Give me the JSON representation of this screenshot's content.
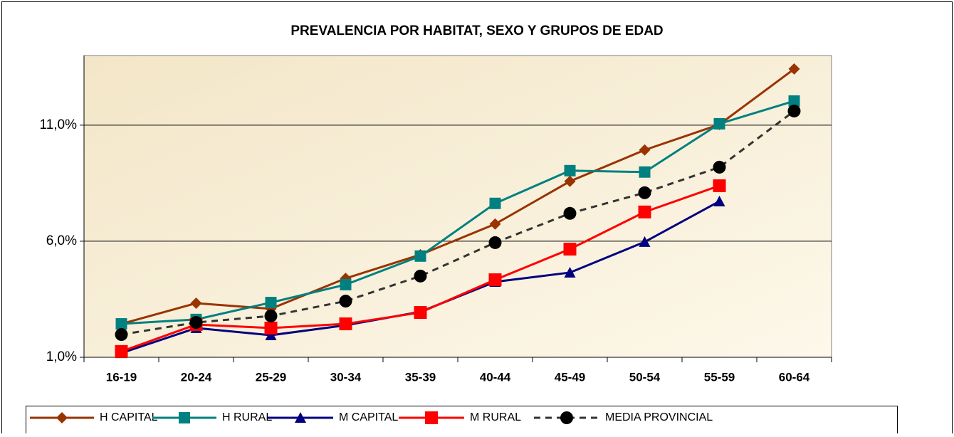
{
  "chart_data": {
    "type": "line",
    "title": "PREVALENCIA POR HABITAT, SEXO Y GRUPOS DE EDAD",
    "categories": [
      "16-19",
      "20-24",
      "25-29",
      "30-34",
      "35-39",
      "40-44",
      "45-49",
      "50-54",
      "55-59",
      "60-64"
    ],
    "ylim": [
      1,
      14
    ],
    "yticks": [
      {
        "value": 1,
        "label": "1,0%"
      },
      {
        "value": 6,
        "label": "6,0%"
      },
      {
        "value": 11,
        "label": "11,0%"
      }
    ],
    "grid": true,
    "legend": "bottom",
    "series": [
      {
        "name": "H CAPITAL",
        "color": "#993300",
        "marker": "diamond",
        "values": [
          2.44,
          3.33,
          3.09,
          4.4,
          5.42,
          6.74,
          8.58,
          9.93,
          11.03,
          13.42
        ]
      },
      {
        "name": "H RURAL",
        "color": "#008080",
        "marker": "square",
        "values": [
          2.44,
          2.63,
          3.36,
          4.13,
          5.36,
          7.63,
          9.04,
          8.98,
          11.06,
          12.04
        ]
      },
      {
        "name": "M CAPITAL",
        "color": "#000080",
        "marker": "triangle",
        "values": [
          1.18,
          2.26,
          1.95,
          2.38,
          2.96,
          4.25,
          4.65,
          5.97,
          7.72,
          null
        ]
      },
      {
        "name": "M RURAL",
        "color": "#ff0000",
        "marker": "bigsquare",
        "values": [
          1.25,
          2.41,
          2.26,
          2.44,
          2.93,
          4.34,
          5.66,
          7.26,
          8.39,
          null
        ]
      },
      {
        "name": "MEDIA PROVINCIAL",
        "color": "#000000",
        "marker": "circle",
        "dashed": true,
        "values": [
          1.98,
          2.5,
          2.78,
          3.42,
          4.5,
          5.94,
          7.2,
          8.09,
          9.19,
          11.61
        ]
      }
    ]
  }
}
